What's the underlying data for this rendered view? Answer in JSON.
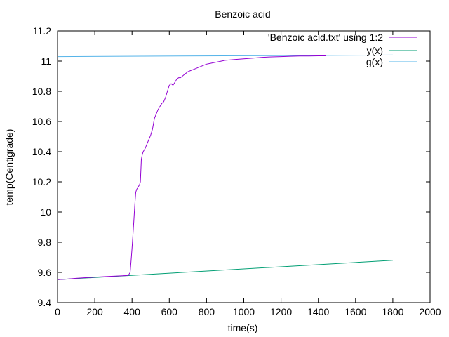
{
  "chart_data": {
    "type": "line",
    "title": "Benzoic acid",
    "xlabel": "time(s)",
    "ylabel": "temp(Centigrade)",
    "xlim": [
      0,
      2000
    ],
    "ylim": [
      9.4,
      11.2
    ],
    "x_ticks": [
      0,
      200,
      400,
      600,
      800,
      1000,
      1200,
      1400,
      1600,
      1800,
      2000
    ],
    "y_ticks": [
      9.4,
      9.6,
      9.8,
      10,
      10.2,
      10.4,
      10.6,
      10.8,
      11,
      11.2
    ],
    "x_tick_labels": [
      "0",
      "200",
      "400",
      "600",
      "800",
      "1000",
      "1200",
      "1400",
      "1600",
      "1800",
      "2000"
    ],
    "y_tick_labels": [
      "9.4",
      "9.6",
      "9.8",
      "10",
      "10.2",
      "10.4",
      "10.6",
      "10.8",
      "11",
      "11.2"
    ],
    "grid": false,
    "legend": "top-right",
    "series": [
      {
        "name": "'Benzoic acid.txt' using 1:2",
        "color": "#9400d3",
        "x": [
          0,
          50,
          100,
          150,
          200,
          250,
          300,
          350,
          380,
          390,
          395,
          400,
          405,
          410,
          415,
          420,
          425,
          430,
          435,
          440,
          445,
          450,
          455,
          460,
          470,
          480,
          490,
          500,
          510,
          520,
          530,
          540,
          550,
          560,
          570,
          580,
          590,
          600,
          610,
          620,
          630,
          640,
          650,
          660,
          670,
          680,
          690,
          700,
          720,
          740,
          760,
          780,
          800,
          820,
          840,
          860,
          880,
          900,
          950,
          1000,
          1050,
          1100,
          1150,
          1200,
          1250,
          1300,
          1350,
          1400,
          1440
        ],
        "y": [
          9.552,
          9.556,
          9.561,
          9.565,
          9.569,
          9.572,
          9.575,
          9.578,
          9.58,
          9.6,
          9.68,
          9.76,
          9.85,
          9.95,
          10.05,
          10.13,
          10.15,
          10.16,
          10.17,
          10.18,
          10.2,
          10.35,
          10.38,
          10.4,
          10.42,
          10.45,
          10.48,
          10.51,
          10.55,
          10.62,
          10.65,
          10.68,
          10.7,
          10.72,
          10.73,
          10.76,
          10.8,
          10.84,
          10.85,
          10.84,
          10.86,
          10.88,
          10.89,
          10.89,
          10.9,
          10.91,
          10.92,
          10.93,
          10.94,
          10.95,
          10.96,
          10.97,
          10.98,
          10.985,
          10.99,
          10.995,
          11.0,
          11.005,
          11.01,
          11.015,
          11.02,
          11.025,
          11.028,
          11.03,
          11.032,
          11.034,
          11.034,
          11.035,
          11.035
        ]
      },
      {
        "name": "y(x)",
        "color": "#009e73",
        "x": [
          0,
          1800
        ],
        "y": [
          9.552,
          9.68
        ]
      },
      {
        "name": "g(x)",
        "color": "#56b4e9",
        "x": [
          0,
          1800
        ],
        "y": [
          11.03,
          11.04
        ]
      }
    ]
  }
}
